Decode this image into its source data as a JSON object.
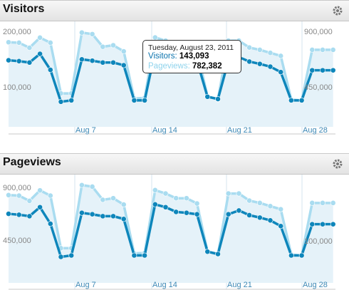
{
  "panels": [
    {
      "title": "Visitors",
      "gear_icon": "gear-icon"
    },
    {
      "title": "Pageviews",
      "gear_icon": "gear-icon"
    }
  ],
  "colors": {
    "visitors_line": "#0e86bb",
    "pageviews_line": "#a9dcf0",
    "area_fill": "#e5f2f9",
    "grid": "#d6e6ef"
  },
  "tooltip": {
    "date": "Tuesday, August 23, 2011",
    "visitors_label": "Visitors:",
    "visitors_value": "143,093",
    "pageviews_label": "Pageviews:",
    "pageviews_value": "782,382"
  },
  "chart_data": [
    {
      "type": "line",
      "title": "Visitors",
      "x_labels": [
        "Aug 7",
        "Aug 14",
        "Aug 21",
        "Aug 28"
      ],
      "y_left_ticks": [
        "200,000",
        "100,000"
      ],
      "y_right_ticks": [
        "900,000",
        "450,000"
      ],
      "y_left_range": [
        0,
        250000
      ],
      "y_right_range": [
        0,
        1125000
      ],
      "series": [
        {
          "name": "Visitors",
          "axis": "left",
          "values": [
            146000,
            144000,
            141000,
            160000,
            125000,
            55000,
            58000,
            148000,
            145000,
            141000,
            141000,
            135000,
            58000,
            58000,
            166000,
            160000,
            150000,
            148000,
            145000,
            66000,
            61000,
            145000,
            153000,
            143093,
            138000,
            132000,
            120000,
            58000,
            58000,
            124000,
            124000,
            124000
          ]
        },
        {
          "name": "Pageviews",
          "axis": "right",
          "values": [
            835000,
            830000,
            780000,
            880000,
            830000,
            330000,
            330000,
            930000,
            915000,
            790000,
            805000,
            745000,
            280000,
            285000,
            882000,
            850000,
            805000,
            805000,
            755000,
            300000,
            270000,
            850000,
            850000,
            782382,
            760000,
            730000,
            700000,
            270000,
            260000,
            760000,
            760000,
            760000
          ]
        }
      ]
    },
    {
      "type": "line",
      "title": "Pageviews",
      "x_labels": [
        "Aug 7",
        "Aug 14",
        "Aug 21",
        "Aug 28"
      ],
      "y_left_ticks": [
        "900,000",
        "450,000"
      ],
      "y_right_ticks": [
        "100,000"
      ],
      "y_left_range": [
        0,
        1125000
      ],
      "y_right_range": [
        0,
        250000
      ],
      "series": [
        {
          "name": "Pageviews",
          "axis": "left",
          "values": [
            835000,
            830000,
            780000,
            880000,
            830000,
            330000,
            330000,
            930000,
            915000,
            790000,
            805000,
            745000,
            280000,
            285000,
            882000,
            850000,
            805000,
            805000,
            755000,
            300000,
            270000,
            850000,
            850000,
            782382,
            760000,
            730000,
            700000,
            270000,
            260000,
            760000,
            760000,
            760000
          ]
        },
        {
          "name": "Visitors",
          "axis": "right",
          "values": [
            146000,
            144000,
            141000,
            160000,
            125000,
            55000,
            58000,
            148000,
            145000,
            141000,
            141000,
            135000,
            58000,
            58000,
            166000,
            160000,
            150000,
            148000,
            145000,
            66000,
            61000,
            145000,
            153000,
            143093,
            138000,
            132000,
            120000,
            58000,
            58000,
            124000,
            124000,
            124000
          ]
        }
      ]
    }
  ]
}
